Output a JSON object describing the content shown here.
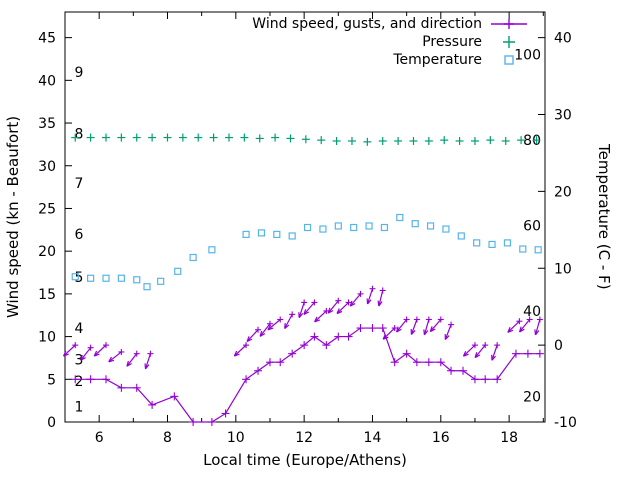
{
  "chart_data": {
    "type": "line",
    "title": "",
    "xlabel": "Local time (Europe/Athens)",
    "ylabel_left": "Wind speed (kn - Beaufort)",
    "ylabel_right": "Temperature (C - F)",
    "x_range": [
      5.0,
      19.05
    ],
    "y_left_range_kn": [
      0,
      48
    ],
    "y_right_range_c": [
      -10,
      43.3
    ],
    "x_major_ticks": [
      6,
      8,
      10,
      12,
      14,
      16,
      18
    ],
    "x_minor_ticks": [
      7,
      9,
      11,
      13,
      15,
      17,
      19
    ],
    "y_left_ticks_kn": [
      0,
      5,
      10,
      15,
      20,
      25,
      30,
      35,
      40,
      45
    ],
    "y_right_ticks_c": [
      -10,
      0,
      10,
      20,
      30,
      40
    ],
    "beaufort_scale_labels": [
      [
        1,
        1.8
      ],
      [
        2,
        4.8
      ],
      [
        3,
        7.3
      ],
      [
        4,
        11
      ],
      [
        5,
        17
      ],
      [
        6,
        22
      ],
      [
        7,
        28
      ],
      [
        8,
        33.8
      ],
      [
        9,
        41
      ]
    ],
    "fahrenheit_scale_labels": [
      20,
      40,
      60,
      80,
      100
    ],
    "grid": false,
    "legend": {
      "position": "top-right-inside",
      "entries": [
        {
          "label": "Wind speed, gusts, and direction",
          "marker": "line-with-plus",
          "color": "#9400D3"
        },
        {
          "label": "Pressure",
          "marker": "plus",
          "color": "#009E73"
        },
        {
          "label": "Temperature",
          "marker": "open-square",
          "color": "#56B4E9"
        }
      ]
    },
    "series": {
      "wind_speed_kn": {
        "color": "#9400D3",
        "points": [
          [
            5.3,
            5
          ],
          [
            5.75,
            5
          ],
          [
            6.2,
            5
          ],
          [
            6.65,
            4
          ],
          [
            7.1,
            4
          ],
          [
            7.55,
            2
          ],
          [
            8.2,
            3
          ],
          [
            8.75,
            0
          ],
          [
            9.3,
            0
          ],
          [
            9.7,
            1
          ],
          [
            10.3,
            5
          ],
          [
            10.65,
            6
          ],
          [
            11.0,
            7
          ],
          [
            11.3,
            7
          ],
          [
            11.65,
            8
          ],
          [
            12.0,
            9
          ],
          [
            12.3,
            10
          ],
          [
            12.65,
            9
          ],
          [
            13.0,
            10
          ],
          [
            13.3,
            10
          ],
          [
            13.65,
            11
          ],
          [
            14.0,
            11
          ],
          [
            14.3,
            11
          ],
          [
            14.65,
            7
          ],
          [
            15.0,
            8
          ],
          [
            15.3,
            7
          ],
          [
            15.65,
            7
          ],
          [
            16.0,
            7
          ],
          [
            16.3,
            6
          ],
          [
            16.65,
            6
          ],
          [
            17.0,
            5
          ],
          [
            17.3,
            5
          ],
          [
            17.65,
            5
          ],
          [
            18.2,
            8
          ],
          [
            18.55,
            8
          ],
          [
            18.9,
            8
          ]
        ]
      },
      "wind_gusts_kn_with_direction_deg": {
        "color": "#9400D3",
        "arrows": [
          [
            5.3,
            9,
            137
          ],
          [
            5.75,
            8.7,
            128
          ],
          [
            6.2,
            9,
            137
          ],
          [
            6.65,
            8.2,
            142
          ],
          [
            7.1,
            8,
            128
          ],
          [
            7.5,
            8,
            108
          ],
          [
            10.3,
            9,
            137
          ],
          [
            10.65,
            10.8,
            133
          ],
          [
            11.0,
            11.5,
            128
          ],
          [
            11.3,
            12,
            140
          ],
          [
            11.65,
            12.6,
            118
          ],
          [
            12.0,
            14,
            108
          ],
          [
            12.3,
            14,
            131
          ],
          [
            12.65,
            13,
            137
          ],
          [
            13.0,
            14.2,
            129
          ],
          [
            13.3,
            14,
            136
          ],
          [
            13.65,
            15,
            130
          ],
          [
            14.0,
            15.6,
            108
          ],
          [
            14.3,
            15.4,
            104
          ],
          [
            14.65,
            11,
            136
          ],
          [
            15.0,
            12,
            129
          ],
          [
            15.3,
            12,
            110
          ],
          [
            15.65,
            12,
            106
          ],
          [
            16.0,
            12,
            131
          ],
          [
            16.3,
            11.4,
            111
          ],
          [
            17.0,
            9,
            136
          ],
          [
            17.3,
            9,
            129
          ],
          [
            17.65,
            9,
            109
          ],
          [
            18.3,
            11.8,
            136
          ],
          [
            18.6,
            12,
            129
          ],
          [
            18.9,
            12,
            106
          ]
        ]
      },
      "pressure_left_axis_units": {
        "color": "#009E73",
        "points": [
          [
            5.3,
            33.3
          ],
          [
            5.75,
            33.3
          ],
          [
            6.2,
            33.3
          ],
          [
            6.65,
            33.3
          ],
          [
            7.1,
            33.3
          ],
          [
            7.55,
            33.3
          ],
          [
            8.0,
            33.3
          ],
          [
            8.45,
            33.3
          ],
          [
            8.9,
            33.3
          ],
          [
            9.35,
            33.3
          ],
          [
            9.8,
            33.3
          ],
          [
            10.25,
            33.3
          ],
          [
            10.7,
            33.2
          ],
          [
            11.15,
            33.3
          ],
          [
            11.6,
            33.2
          ],
          [
            12.05,
            33.1
          ],
          [
            12.5,
            33.0
          ],
          [
            12.95,
            32.9
          ],
          [
            13.4,
            32.9
          ],
          [
            13.85,
            32.8
          ],
          [
            14.3,
            32.9
          ],
          [
            14.75,
            32.9
          ],
          [
            15.2,
            32.9
          ],
          [
            15.65,
            32.9
          ],
          [
            16.1,
            33.0
          ],
          [
            16.55,
            32.9
          ],
          [
            17.0,
            32.9
          ],
          [
            17.45,
            33.0
          ],
          [
            17.9,
            32.9
          ],
          [
            18.35,
            33.0
          ],
          [
            18.8,
            33.0
          ]
        ]
      },
      "temperature_c": {
        "color": "#56B4E9",
        "points": [
          [
            5.3,
            8.9
          ],
          [
            5.75,
            8.7
          ],
          [
            6.2,
            8.7
          ],
          [
            6.65,
            8.7
          ],
          [
            7.1,
            8.5
          ],
          [
            7.4,
            7.6
          ],
          [
            7.8,
            8.3
          ],
          [
            8.3,
            9.6
          ],
          [
            8.75,
            11.4
          ],
          [
            9.3,
            12.4
          ],
          [
            10.3,
            14.4
          ],
          [
            10.75,
            14.6
          ],
          [
            11.2,
            14.4
          ],
          [
            11.65,
            14.2
          ],
          [
            12.1,
            15.3
          ],
          [
            12.55,
            15.1
          ],
          [
            13.0,
            15.5
          ],
          [
            13.45,
            15.3
          ],
          [
            13.9,
            15.5
          ],
          [
            14.35,
            15.3
          ],
          [
            14.8,
            16.6
          ],
          [
            15.25,
            15.8
          ],
          [
            15.7,
            15.5
          ],
          [
            16.15,
            15.1
          ],
          [
            16.6,
            14.2
          ],
          [
            17.05,
            13.3
          ],
          [
            17.5,
            13.1
          ],
          [
            17.95,
            13.3
          ],
          [
            18.4,
            12.5
          ],
          [
            18.85,
            12.4
          ]
        ]
      }
    }
  }
}
